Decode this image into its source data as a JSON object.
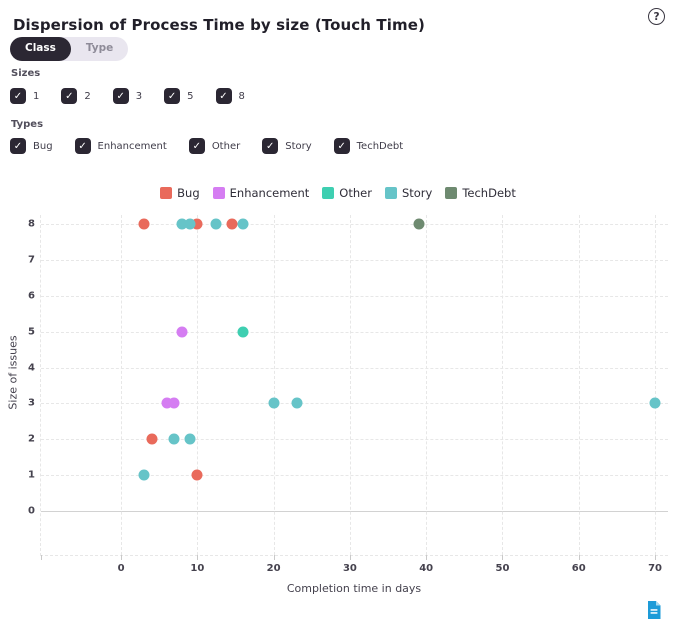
{
  "header": {
    "title": "Dispersion of Process Time by size (Touch Time)",
    "help_glyph": "?"
  },
  "toggle": {
    "options": [
      {
        "label": "Class",
        "selected": true
      },
      {
        "label": "Type",
        "selected": false
      }
    ]
  },
  "filters": {
    "sizes_label": "Sizes",
    "types_label": "Types",
    "check_glyph": "✓",
    "sizes": [
      {
        "label": "1",
        "checked": true
      },
      {
        "label": "2",
        "checked": true
      },
      {
        "label": "3",
        "checked": true
      },
      {
        "label": "5",
        "checked": true
      },
      {
        "label": "8",
        "checked": true
      }
    ],
    "types": [
      {
        "label": "Bug",
        "checked": true
      },
      {
        "label": "Enhancement",
        "checked": true
      },
      {
        "label": "Other",
        "checked": true
      },
      {
        "label": "Story",
        "checked": true
      },
      {
        "label": "TechDebt",
        "checked": true
      }
    ]
  },
  "chart_data": {
    "type": "scatter",
    "xlabel": "Completion time in days",
    "ylabel": "Size of issues",
    "xlim": [
      -10.5,
      71.7
    ],
    "ylim": [
      -1.22,
      8.25
    ],
    "xticks": [
      0,
      10,
      20,
      30,
      40,
      50,
      60,
      70
    ],
    "yticks": [
      0,
      1,
      2,
      3,
      4,
      5,
      6,
      7,
      8
    ],
    "grid": "dashed",
    "legend_position": "top",
    "series": [
      {
        "name": "Bug",
        "color": "#e96a5b",
        "points": [
          [
            3,
            8
          ],
          [
            10,
            8
          ],
          [
            14.5,
            8
          ],
          [
            4,
            2
          ],
          [
            10,
            1
          ]
        ]
      },
      {
        "name": "Enhancement",
        "color": "#d57df2",
        "points": [
          [
            8,
            5
          ],
          [
            6,
            3
          ],
          [
            7,
            3
          ]
        ]
      },
      {
        "name": "Other",
        "color": "#3ecfb1",
        "points": [
          [
            16,
            5
          ]
        ]
      },
      {
        "name": "Story",
        "color": "#66c4c8",
        "points": [
          [
            8,
            8
          ],
          [
            9,
            8
          ],
          [
            12.5,
            8
          ],
          [
            16,
            8
          ],
          [
            20,
            3
          ],
          [
            23,
            3
          ],
          [
            70,
            3
          ],
          [
            7,
            2
          ],
          [
            9,
            2
          ],
          [
            3,
            1
          ]
        ]
      },
      {
        "name": "TechDebt",
        "color": "#6e8a70",
        "points": [
          [
            39,
            8
          ]
        ]
      }
    ]
  },
  "footer": {
    "export_icon": "document"
  }
}
